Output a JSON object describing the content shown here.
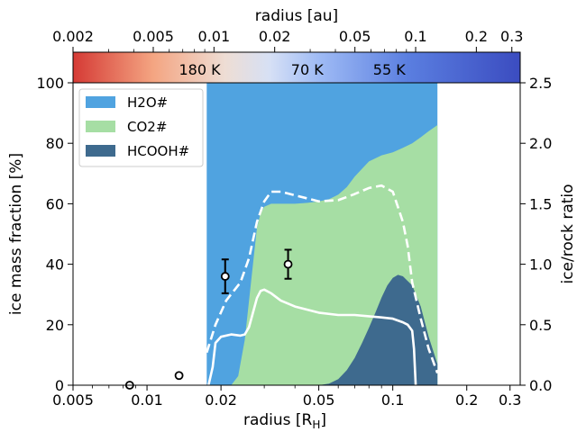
{
  "chart_data": {
    "type": "area",
    "xlabel_bottom": "radius [R_H]",
    "xlabel_top": "radius [au]",
    "ylabel_left": "ice mass fraction [%]",
    "ylabel_right": "ice/rock ratio",
    "x_scale": "log",
    "xlim": [
      0.005,
      0.33
    ],
    "ylim_left": [
      0,
      100
    ],
    "ylim_right": [
      0,
      2.5
    ],
    "top_xlim": [
      0.002,
      0.33
    ],
    "bottom_ticks": [
      "0.005",
      "0.01",
      "0.02",
      "0.05",
      "0.1",
      "0.2",
      "0.3"
    ],
    "bottom_tick_values": [
      0.005,
      0.01,
      0.02,
      0.05,
      0.1,
      0.2,
      0.3
    ],
    "top_ticks": [
      "0.002",
      "0.005",
      "0.01",
      "0.02",
      "0.05",
      "0.1",
      "0.2",
      "0.3"
    ],
    "top_tick_values": [
      0.002,
      0.005,
      0.01,
      0.02,
      0.05,
      0.1,
      0.2,
      0.3
    ],
    "left_ticks": [
      "0",
      "20",
      "40",
      "60",
      "80",
      "100"
    ],
    "left_tick_values": [
      0,
      20,
      40,
      60,
      80,
      100
    ],
    "right_ticks": [
      "0.0",
      "0.5",
      "1.0",
      "1.5",
      "2.0",
      "2.5"
    ],
    "right_tick_values": [
      0.0,
      0.5,
      1.0,
      1.5,
      2.0,
      2.5
    ],
    "colorbar": {
      "labels": [
        "180 K",
        "70 K",
        "55 K"
      ],
      "label_positions_au": [
        0.0085,
        0.029,
        0.074
      ],
      "colors": [
        "#d53a35",
        "#f4a582",
        "#e8e8f0",
        "#9fbbf5",
        "#5a7ee0",
        "#3b4cc0"
      ]
    },
    "legend": {
      "placement": "upper-left",
      "entries": [
        "H2O#",
        "CO2#",
        "HCOOH#"
      ]
    },
    "series": [
      {
        "name": "H2O#",
        "color": "#50a3e0",
        "x": [
          0.0175,
          0.018,
          0.02,
          0.025,
          0.03,
          0.04,
          0.05,
          0.06,
          0.07,
          0.08,
          0.09,
          0.1,
          0.12,
          0.14,
          0.152
        ],
        "y": [
          100,
          100,
          100,
          100,
          100,
          100,
          100,
          100,
          100,
          100,
          100,
          100,
          100,
          100,
          100
        ]
      },
      {
        "name": "CO2#",
        "color": "#a6dea4",
        "x": [
          0.0175,
          0.02,
          0.022,
          0.0235,
          0.025,
          0.027,
          0.028,
          0.029,
          0.03,
          0.032,
          0.035,
          0.04,
          0.045,
          0.05,
          0.055,
          0.06,
          0.065,
          0.07,
          0.08,
          0.09,
          0.1,
          0.11,
          0.12,
          0.13,
          0.14,
          0.152
        ],
        "y": [
          0,
          0,
          0,
          3,
          15,
          40,
          52,
          57,
          59,
          60,
          60,
          60,
          60.3,
          60.8,
          61.5,
          63,
          65.5,
          69,
          74,
          76,
          77,
          78.5,
          80,
          82,
          84,
          86
        ]
      },
      {
        "name": "HCOOH#",
        "color": "#3e6a8e",
        "x": [
          0.0175,
          0.03,
          0.05,
          0.055,
          0.06,
          0.065,
          0.07,
          0.075,
          0.08,
          0.085,
          0.09,
          0.095,
          0.1,
          0.105,
          0.11,
          0.12,
          0.13,
          0.14,
          0.152
        ],
        "y": [
          0,
          0,
          0,
          0.5,
          2,
          5,
          9,
          14,
          19,
          24,
          29,
          33,
          35.5,
          36.5,
          36,
          33,
          26,
          16,
          7
        ]
      }
    ],
    "lines": [
      {
        "style": "dashed",
        "axis": "right",
        "color": "#ffffff",
        "x": [
          0.0175,
          0.019,
          0.021,
          0.024,
          0.026,
          0.028,
          0.03,
          0.032,
          0.035,
          0.04,
          0.05,
          0.06,
          0.07,
          0.08,
          0.09,
          0.1,
          0.11,
          0.115,
          0.12,
          0.13,
          0.14,
          0.152
        ],
        "y": [
          0.27,
          0.5,
          0.7,
          0.85,
          1.05,
          1.35,
          1.52,
          1.6,
          1.6,
          1.57,
          1.52,
          1.53,
          1.58,
          1.63,
          1.65,
          1.6,
          1.35,
          1.15,
          0.85,
          0.55,
          0.3,
          0.1
        ]
      },
      {
        "style": "solid",
        "axis": "right",
        "color": "#ffffff",
        "x": [
          0.0178,
          0.0185,
          0.019,
          0.02,
          0.022,
          0.024,
          0.025,
          0.026,
          0.027,
          0.028,
          0.029,
          0.03,
          0.032,
          0.035,
          0.04,
          0.05,
          0.06,
          0.07,
          0.08,
          0.09,
          0.1,
          0.11,
          0.115,
          0.12,
          0.122,
          0.124
        ],
        "y": [
          0,
          0.15,
          0.35,
          0.4,
          0.42,
          0.41,
          0.42,
          0.48,
          0.6,
          0.72,
          0.78,
          0.79,
          0.76,
          0.7,
          0.65,
          0.6,
          0.58,
          0.58,
          0.57,
          0.56,
          0.55,
          0.52,
          0.5,
          0.45,
          0.3,
          0
        ]
      }
    ],
    "points": [
      {
        "x": 0.0085,
        "y": 0.0,
        "err": 0.0
      },
      {
        "x": 0.0135,
        "y": 0.08,
        "err": 0.0
      },
      {
        "x": 0.0208,
        "y": 0.9,
        "err": 0.14
      },
      {
        "x": 0.0375,
        "y": 1.0,
        "err": 0.12
      }
    ]
  }
}
